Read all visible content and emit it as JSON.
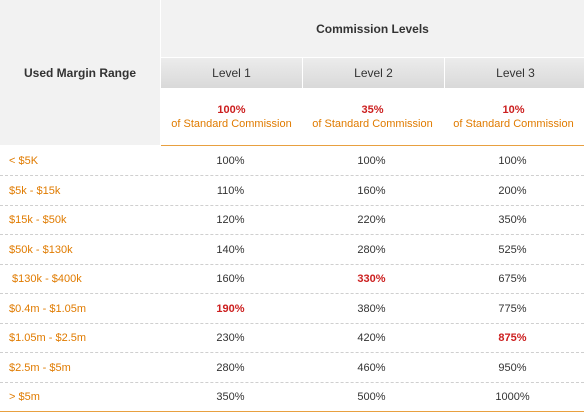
{
  "table": {
    "margin_header": "Used Margin Range",
    "commission_header": "Commission Levels",
    "levels": [
      {
        "label": "Level 1",
        "pct": "100%",
        "sub": "of Standard Commission"
      },
      {
        "label": "Level 2",
        "pct": "35%",
        "sub": "of Standard Commission"
      },
      {
        "label": "Level 3",
        "pct": "10%",
        "sub": "of Standard Commission"
      }
    ],
    "rows": [
      {
        "range": "< $5K",
        "values": [
          "100%",
          "100%",
          "100%"
        ]
      },
      {
        "range": "$5k - $15k",
        "values": [
          "110%",
          "160%",
          "200%"
        ]
      },
      {
        "range": "$15k - $50k",
        "values": [
          "120%",
          "220%",
          "350%"
        ]
      },
      {
        "range": "$50k - $130k",
        "values": [
          "140%",
          "280%",
          "525%"
        ]
      },
      {
        "range": " $130k - $400k",
        "values": [
          "160%",
          "330%",
          "675%"
        ]
      },
      {
        "range": "$0.4m - $1.05m",
        "values": [
          "190%",
          "380%",
          "775%"
        ]
      },
      {
        "range": "$1.05m - $2.5m",
        "values": [
          "230%",
          "420%",
          "875%"
        ]
      },
      {
        "range": "$2.5m - $5m",
        "values": [
          "280%",
          "460%",
          "950%"
        ]
      },
      {
        "range": "> $5m",
        "values": [
          "350%",
          "500%",
          "1000%"
        ]
      }
    ],
    "highlighted": [
      "4.1",
      "5.0",
      "6.2"
    ]
  },
  "colors": {
    "accent_orange": "#e07b00",
    "highlight_red": "#cc1f1f",
    "header_gray": "#f2f2f2"
  }
}
